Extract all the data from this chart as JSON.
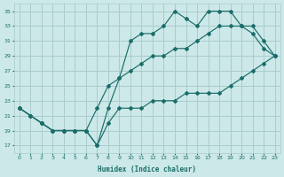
{
  "xlabel": "Humidex (Indice chaleur)",
  "bg_color": "#cce8e8",
  "grid_color": "#aacccc",
  "line_color": "#1a6e6a",
  "xlim": [
    -0.5,
    23.5
  ],
  "ylim": [
    16,
    36
  ],
  "xticks": [
    0,
    1,
    2,
    3,
    4,
    5,
    6,
    7,
    8,
    9,
    10,
    11,
    12,
    13,
    14,
    15,
    16,
    17,
    18,
    19,
    20,
    21,
    22,
    23
  ],
  "yticks": [
    17,
    19,
    21,
    23,
    25,
    27,
    29,
    31,
    33,
    35
  ],
  "line1_x": [
    0,
    1,
    2,
    3,
    4,
    5,
    6,
    7,
    8,
    9,
    10,
    11,
    12,
    13,
    14,
    15,
    16,
    17,
    18,
    19,
    20,
    21,
    22,
    23
  ],
  "line1_y": [
    22,
    21,
    20,
    19,
    19,
    19,
    19,
    17,
    22,
    26,
    31,
    32,
    32,
    33,
    35,
    34,
    33,
    35,
    35,
    35,
    33,
    32,
    30,
    29
  ],
  "line2_x": [
    0,
    1,
    2,
    3,
    4,
    5,
    6,
    7,
    8,
    9,
    10,
    11,
    12,
    13,
    14,
    15,
    16,
    17,
    18,
    19,
    20,
    21,
    22,
    23
  ],
  "line2_y": [
    22,
    21,
    20,
    19,
    19,
    19,
    19,
    22,
    25,
    26,
    27,
    28,
    29,
    29,
    30,
    30,
    31,
    32,
    33,
    33,
    33,
    33,
    31,
    29
  ],
  "line3_x": [
    0,
    1,
    2,
    3,
    4,
    5,
    6,
    7,
    8,
    9,
    10,
    11,
    12,
    13,
    14,
    15,
    16,
    17,
    18,
    19,
    20,
    21,
    22,
    23
  ],
  "line3_y": [
    22,
    21,
    20,
    19,
    19,
    19,
    19,
    17,
    20,
    22,
    22,
    22,
    23,
    23,
    23,
    24,
    24,
    24,
    24,
    25,
    26,
    27,
    28,
    29
  ]
}
